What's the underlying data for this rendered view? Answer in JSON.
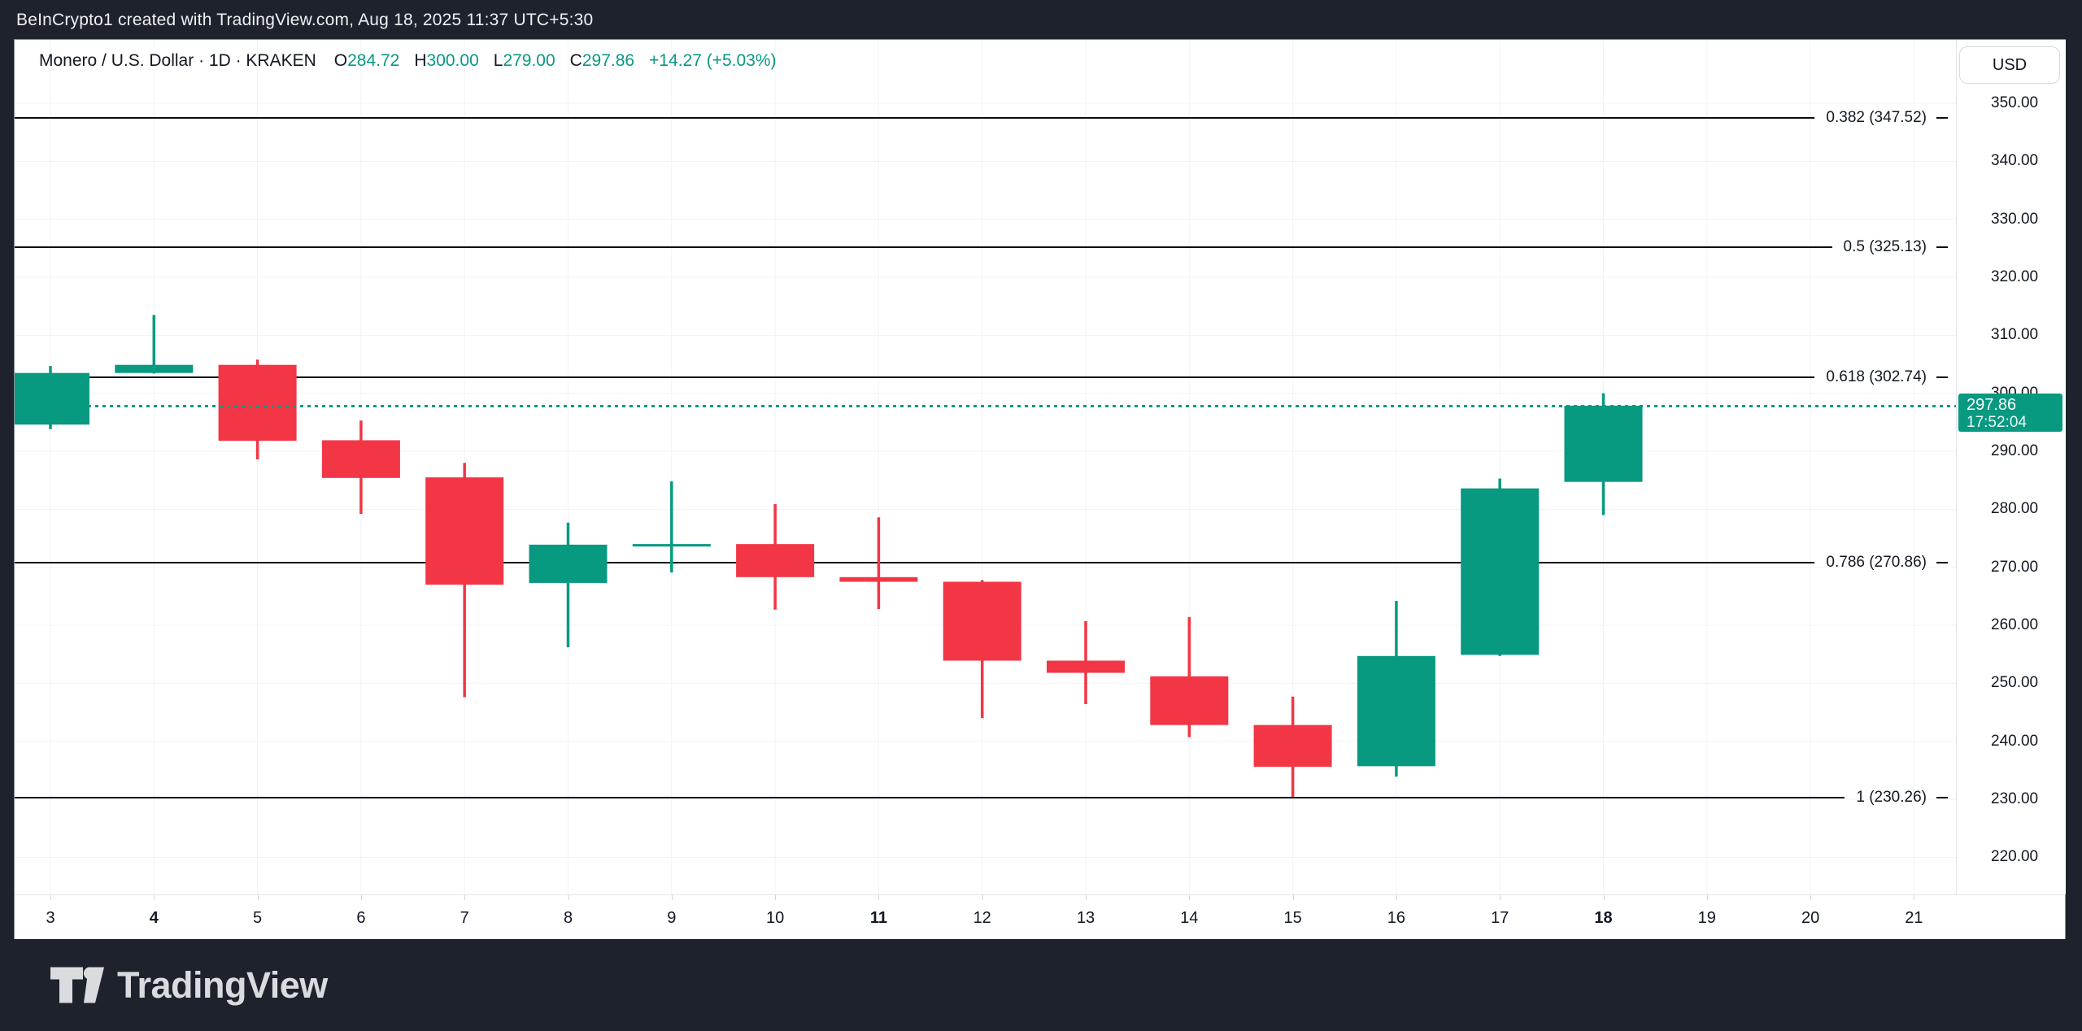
{
  "top_bar": {
    "attribution": "BeInCrypto1 created with TradingView.com, Aug 18, 2025 11:37 UTC+5:30"
  },
  "header": {
    "title": "Monero / U.S. Dollar · 1D · KRAKEN",
    "ohlc": [
      {
        "label": "O",
        "value": "284.72"
      },
      {
        "label": "H",
        "value": "300.00"
      },
      {
        "label": "L",
        "value": "279.00"
      },
      {
        "label": "C",
        "value": "297.86"
      }
    ],
    "change": "+14.27 (+5.03%)"
  },
  "price_axis": {
    "currency": "USD",
    "ticks": [
      "350.00",
      "340.00",
      "330.00",
      "320.00",
      "310.00",
      "300.00",
      "290.00",
      "280.00",
      "270.00",
      "260.00",
      "250.00",
      "240.00",
      "230.00",
      "220.00"
    ],
    "tick_values": [
      350,
      340,
      330,
      320,
      310,
      300,
      290,
      280,
      270,
      260,
      250,
      240,
      230,
      220
    ],
    "last": {
      "price": "297.86",
      "countdown": "17:52:04"
    }
  },
  "time_axis": {
    "labels": [
      "3",
      "4",
      "5",
      "6",
      "7",
      "8",
      "9",
      "10",
      "11",
      "12",
      "13",
      "14",
      "15",
      "16",
      "17",
      "18",
      "19",
      "20",
      "21"
    ],
    "day_values": [
      3,
      4,
      5,
      6,
      7,
      8,
      9,
      10,
      11,
      12,
      13,
      14,
      15,
      16,
      17,
      18,
      19,
      20,
      21
    ],
    "bold_days": [
      4,
      11,
      18
    ]
  },
  "footer": {
    "brand": "TradingView"
  },
  "colors": {
    "up": "#089981",
    "down": "#f23645",
    "fib_line": "#0b0e14",
    "grid": "#f0f3fa",
    "panel_bg": "#ffffff",
    "frame_bg": "#1e222d",
    "text_dark": "#131722",
    "last_price": "#089981"
  },
  "chart_data": {
    "type": "candlestick",
    "symbol_title": "Monero / U.S. Dollar",
    "interval": "1D",
    "exchange": "KRAKEN",
    "price_axis_range": [
      216,
      357
    ],
    "grid_step": 10,
    "x_days": [
      3,
      4,
      5,
      6,
      7,
      8,
      9,
      10,
      11,
      12,
      13,
      14,
      15,
      16,
      17,
      18,
      19,
      20,
      21
    ],
    "candles": [
      {
        "day": 3,
        "open": 294.6,
        "high": 304.7,
        "low": 293.8,
        "close": 303.5
      },
      {
        "day": 4,
        "open": 303.5,
        "high": 313.5,
        "low": 303.4,
        "close": 304.9
      },
      {
        "day": 5,
        "open": 304.9,
        "high": 305.8,
        "low": 288.6,
        "close": 291.8
      },
      {
        "day": 6,
        "open": 291.9,
        "high": 295.3,
        "low": 279.2,
        "close": 285.4
      },
      {
        "day": 7,
        "open": 285.5,
        "high": 288.0,
        "low": 247.6,
        "close": 267.0
      },
      {
        "day": 8,
        "open": 267.3,
        "high": 277.7,
        "low": 256.2,
        "close": 273.9
      },
      {
        "day": 9,
        "open": 273.7,
        "high": 284.8,
        "low": 269.1,
        "close": 274.0
      },
      {
        "day": 10,
        "open": 274.0,
        "high": 280.9,
        "low": 262.7,
        "close": 268.3
      },
      {
        "day": 11,
        "open": 268.3,
        "high": 278.6,
        "low": 262.8,
        "close": 267.5
      },
      {
        "day": 12,
        "open": 267.5,
        "high": 267.8,
        "low": 244.0,
        "close": 253.9
      },
      {
        "day": 13,
        "open": 253.9,
        "high": 260.7,
        "low": 246.4,
        "close": 251.8
      },
      {
        "day": 14,
        "open": 251.2,
        "high": 261.4,
        "low": 240.7,
        "close": 242.8
      },
      {
        "day": 15,
        "open": 242.8,
        "high": 247.7,
        "low": 230.4,
        "close": 235.6
      },
      {
        "day": 16,
        "open": 235.7,
        "high": 264.2,
        "low": 233.9,
        "close": 254.7
      },
      {
        "day": 17,
        "open": 254.9,
        "high": 285.3,
        "low": 254.7,
        "close": 283.6
      },
      {
        "day": 18,
        "open": 284.72,
        "high": 300.0,
        "low": 279.0,
        "close": 297.86
      }
    ],
    "fib_levels": [
      {
        "level": "0.382",
        "price": 347.52,
        "text": "0.382 (347.52)"
      },
      {
        "level": "0.5",
        "price": 325.13,
        "text": "0.5 (325.13)"
      },
      {
        "level": "0.618",
        "price": 302.74,
        "text": "0.618 (302.74)"
      },
      {
        "level": "0.786",
        "price": 270.86,
        "text": "0.786 (270.86)"
      },
      {
        "level": "1",
        "price": 230.26,
        "text": "1 (230.26)"
      }
    ],
    "last_price": 297.86,
    "last_price_line": true,
    "legend_position": "none",
    "grid": true
  }
}
